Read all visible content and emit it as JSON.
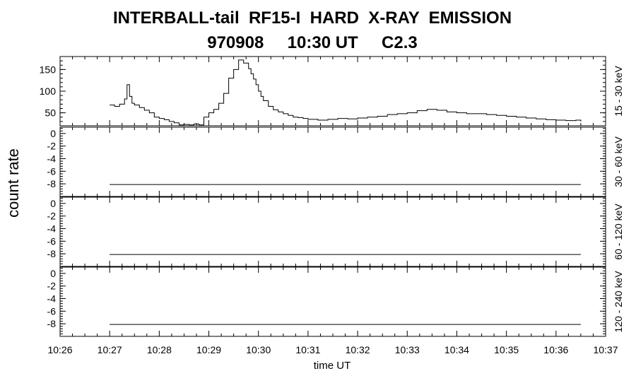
{
  "title_line1": "INTERBALL-tail  RF15-I  HARD  X-RAY  EMISSION",
  "title_line2": "970908     10:30 UT     C2.3",
  "chart_data": {
    "type": "line",
    "xlabel": "time UT",
    "ylabel": "count rate",
    "x_ticks": [
      "10:26",
      "10:27",
      "10:28",
      "10:29",
      "10:30",
      "10:31",
      "10:32",
      "10:33",
      "10:34",
      "10:35",
      "10:36",
      "10:37"
    ],
    "xlim_minutes": [
      0,
      11
    ],
    "series": [
      {
        "name": "15 - 30 keV",
        "ylim": [
          20,
          180
        ],
        "yticks": [
          "50",
          "100",
          "150"
        ],
        "ytick_values": [
          50,
          100,
          150
        ],
        "x": [
          1.0,
          1.1,
          1.2,
          1.3,
          1.35,
          1.4,
          1.45,
          1.5,
          1.6,
          1.7,
          1.8,
          1.9,
          2.0,
          2.1,
          2.2,
          2.3,
          2.4,
          2.5,
          2.6,
          2.7,
          2.8,
          2.9,
          3.0,
          3.1,
          3.2,
          3.3,
          3.4,
          3.5,
          3.6,
          3.7,
          3.8,
          3.85,
          3.9,
          3.95,
          4.0,
          4.05,
          4.1,
          4.2,
          4.3,
          4.4,
          4.5,
          4.6,
          4.7,
          4.8,
          4.9,
          5.0,
          5.2,
          5.4,
          5.6,
          5.8,
          6.0,
          6.2,
          6.4,
          6.6,
          6.8,
          7.0,
          7.2,
          7.4,
          7.6,
          7.8,
          8.0,
          8.2,
          8.4,
          8.6,
          8.8,
          9.0,
          9.2,
          9.4,
          9.6,
          9.8,
          10.0,
          10.2,
          10.4,
          10.5
        ],
        "values": [
          68,
          65,
          70,
          82,
          115,
          88,
          72,
          68,
          62,
          56,
          50,
          40,
          37,
          34,
          30,
          27,
          22,
          23,
          22,
          24,
          22,
          40,
          50,
          58,
          72,
          95,
          130,
          150,
          172,
          165,
          152,
          140,
          128,
          115,
          100,
          88,
          78,
          65,
          57,
          52,
          48,
          44,
          40,
          39,
          37,
          35,
          33,
          35,
          37,
          36,
          38,
          40,
          42,
          46,
          48,
          50,
          55,
          58,
          56,
          52,
          50,
          48,
          48,
          46,
          44,
          42,
          40,
          38,
          36,
          34,
          33,
          32,
          33,
          30
        ]
      },
      {
        "name": "30 - 60 keV",
        "ylim": [
          -10,
          1
        ],
        "yticks": [
          "-8",
          "-6",
          "-4",
          "-2",
          "0"
        ],
        "ytick_values": [
          -8,
          -6,
          -4,
          -2,
          0
        ],
        "x": [
          1.0,
          10.5
        ],
        "values": [
          -8.1,
          -8.1
        ]
      },
      {
        "name": "60 - 120 keV",
        "ylim": [
          -10,
          1
        ],
        "yticks": [
          "-8",
          "-6",
          "-4",
          "-2",
          "0"
        ],
        "ytick_values": [
          -8,
          -6,
          -4,
          -2,
          0
        ],
        "x": [
          1.0,
          10.5
        ],
        "values": [
          -8.1,
          -8.1
        ]
      },
      {
        "name": "120 - 240 keV",
        "ylim": [
          -10,
          1
        ],
        "yticks": [
          "-8",
          "-6",
          "-4",
          "-2",
          "0"
        ],
        "ytick_values": [
          -8,
          -6,
          -4,
          -2,
          0
        ],
        "x": [
          1.0,
          10.5
        ],
        "values": [
          -8.1,
          -8.1
        ]
      }
    ]
  }
}
